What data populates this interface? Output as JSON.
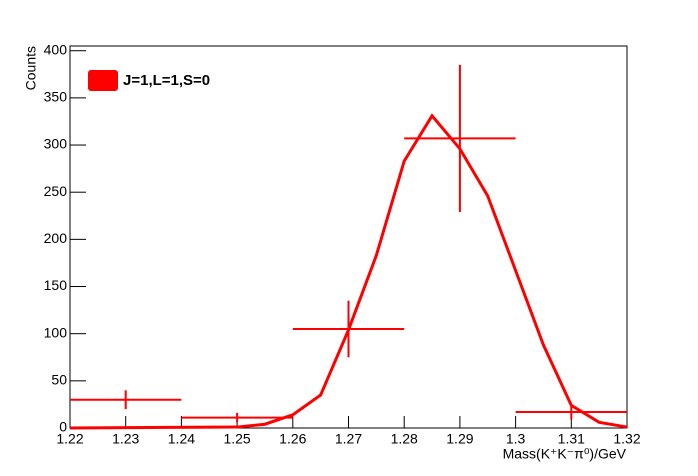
{
  "chart_data": {
    "type": "line",
    "xlabel": "Mass(K⁺K⁻π⁰)/GeV",
    "ylabel": "Counts",
    "xlim": [
      1.22,
      1.32
    ],
    "ylim": [
      0,
      405
    ],
    "xticks": [
      1.22,
      1.23,
      1.24,
      1.25,
      1.26,
      1.27,
      1.28,
      1.29,
      1.3,
      1.31,
      1.32
    ],
    "yticks": [
      0,
      50,
      100,
      150,
      200,
      250,
      300,
      350,
      400
    ],
    "legend": "top-left",
    "series": [
      {
        "name": "J=1,L=1,S=0",
        "color": "#ff0000",
        "x": [
          1.22,
          1.25,
          1.255,
          1.26,
          1.265,
          1.27,
          1.275,
          1.28,
          1.285,
          1.29,
          1.295,
          1.3,
          1.305,
          1.31,
          1.315,
          1.32
        ],
        "values": [
          0,
          1,
          4,
          14,
          35,
          104,
          183,
          283,
          331,
          296,
          246,
          167,
          88,
          24,
          6,
          1
        ]
      }
    ],
    "points": {
      "color": "#ff0000",
      "x": [
        1.23,
        1.25,
        1.27,
        1.29,
        1.31
      ],
      "xerr": [
        0.01,
        0.01,
        0.01,
        0.01,
        0.01
      ],
      "values": [
        30,
        11,
        105,
        307,
        17
      ],
      "yerr": [
        10,
        5,
        30,
        78,
        8
      ]
    }
  }
}
